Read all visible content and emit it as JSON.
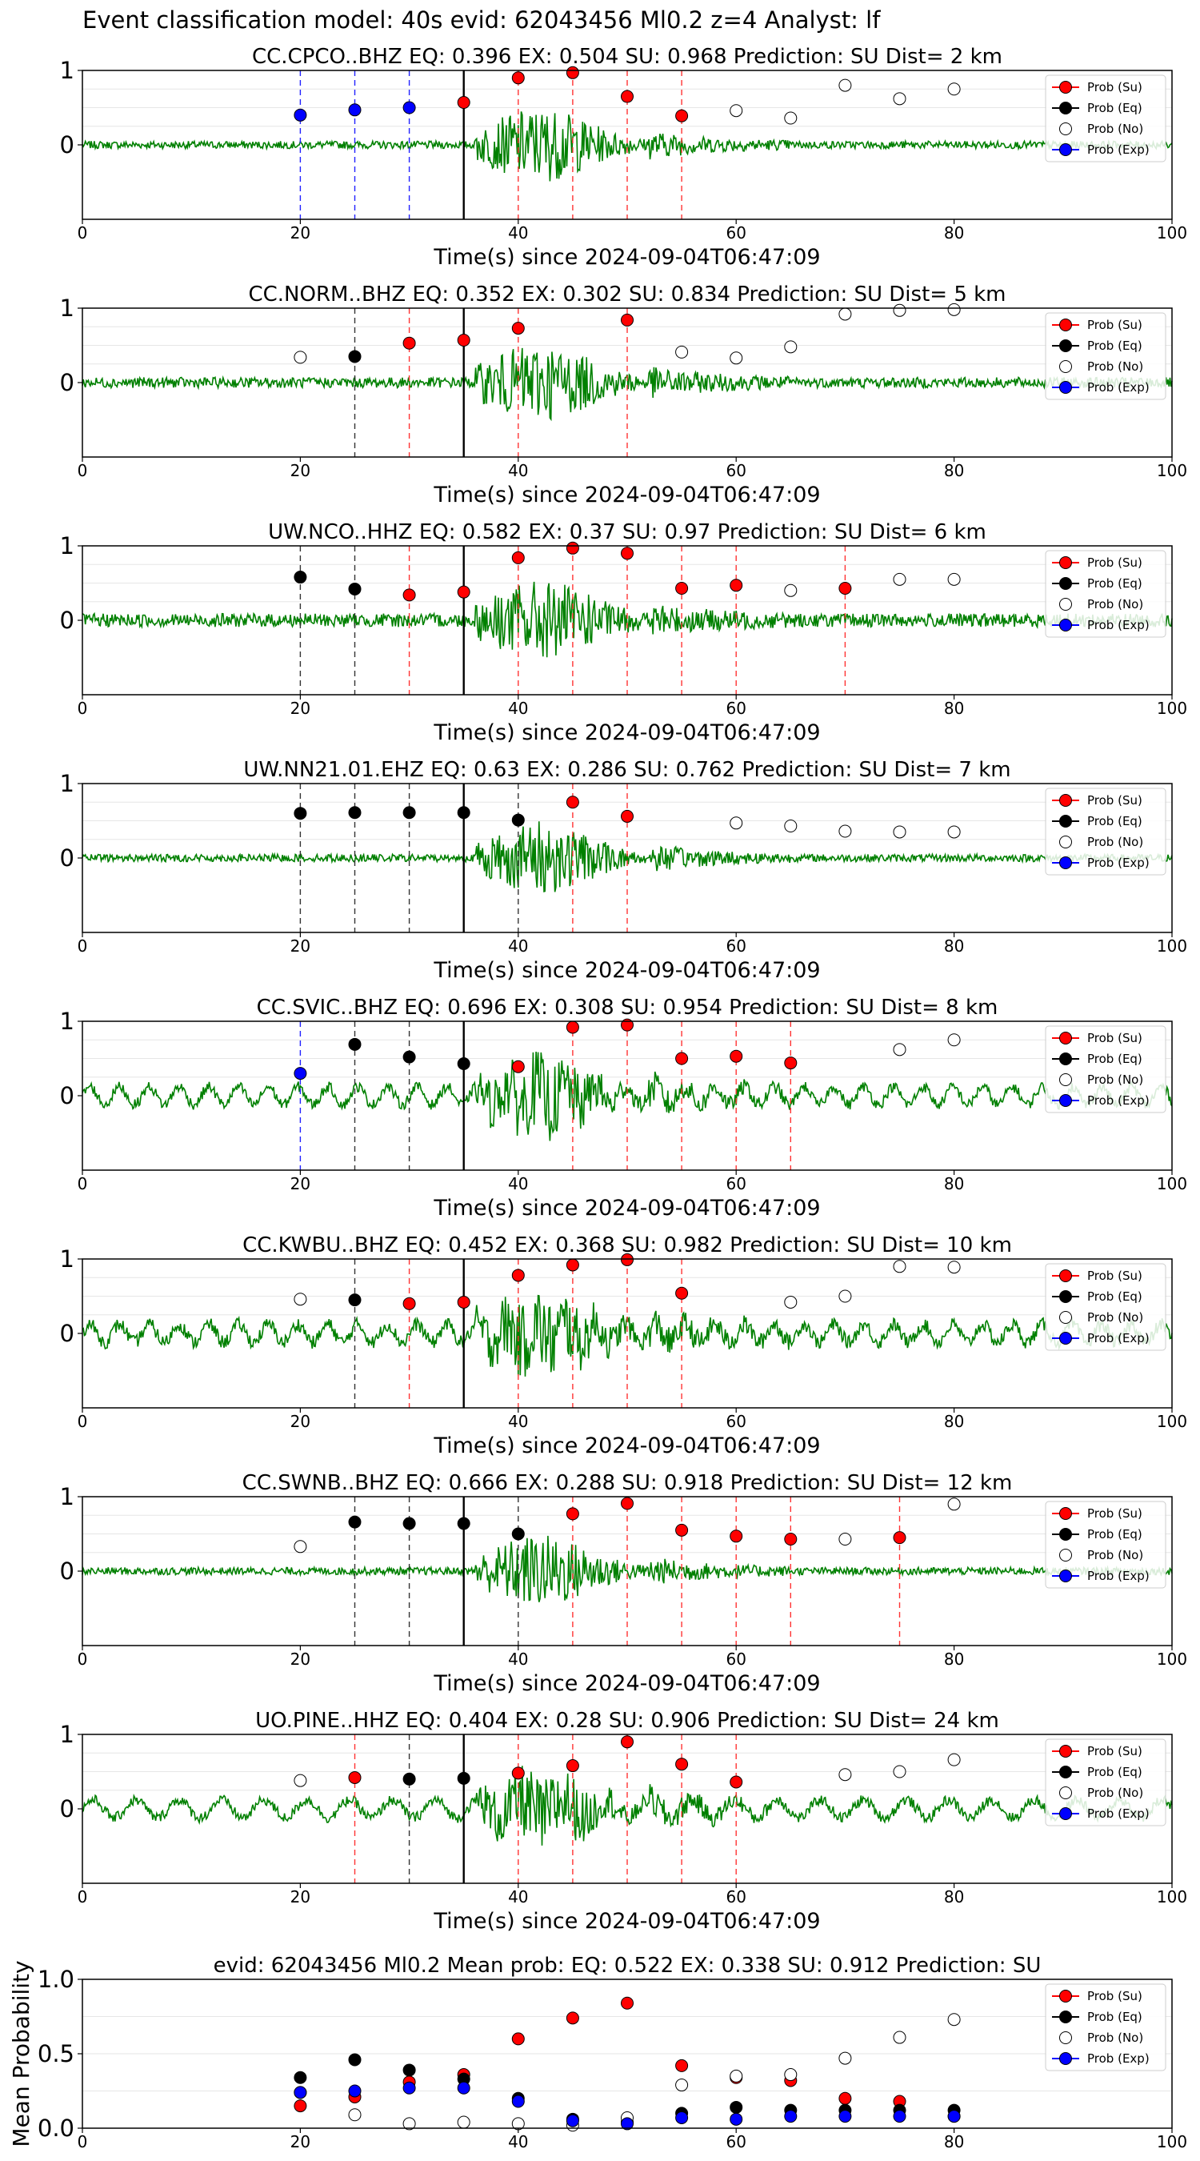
{
  "suptitle": "Event classification model: 40s evid: 62043456 Ml0.2 z=4 Analyst: lf",
  "colors": {
    "su": "#ff0000",
    "eq": "#000000",
    "no": "#ffffff",
    "exp": "#0000ff",
    "waveform": "#008000"
  },
  "legend_labels": [
    "Prob (Su)",
    "Prob (Eq)",
    "Prob (No)",
    "Prob (Exp)"
  ],
  "chart_data": [
    {
      "type": "scatter",
      "title": "CC.CPCO..BHZ   EQ: 0.396  EX: 0.504  SU: 0.968   Prediction: SU    Dist= 2 km",
      "xlabel": "Time(s) since 2024-09-04T06:47:09",
      "xlim": [
        0,
        100
      ],
      "ylim": [
        -1,
        1
      ],
      "xticks": [
        "0",
        "20",
        "40",
        "60",
        "80",
        "100"
      ],
      "yticks": [
        "0",
        "1"
      ],
      "legend_position": "top-right",
      "origin_time": 35,
      "vlines": [
        {
          "x": 20,
          "cls": "exp"
        },
        {
          "x": 25,
          "cls": "exp"
        },
        {
          "x": 30,
          "cls": "exp"
        },
        {
          "x": 40,
          "cls": "su"
        },
        {
          "x": 45,
          "cls": "su"
        },
        {
          "x": 50,
          "cls": "su"
        },
        {
          "x": 55,
          "cls": "su"
        }
      ],
      "points": [
        {
          "x": 20,
          "y": 0.4,
          "cls": "exp"
        },
        {
          "x": 25,
          "y": 0.47,
          "cls": "exp"
        },
        {
          "x": 30,
          "y": 0.5,
          "cls": "exp"
        },
        {
          "x": 35,
          "y": 0.57,
          "cls": "su"
        },
        {
          "x": 40,
          "y": 0.9,
          "cls": "su"
        },
        {
          "x": 45,
          "y": 0.97,
          "cls": "su"
        },
        {
          "x": 50,
          "y": 0.65,
          "cls": "su"
        },
        {
          "x": 55,
          "y": 0.39,
          "cls": "su"
        },
        {
          "x": 60,
          "y": 0.46,
          "cls": "no"
        },
        {
          "x": 65,
          "y": 0.36,
          "cls": "no"
        },
        {
          "x": 70,
          "y": 0.8,
          "cls": "no"
        },
        {
          "x": 75,
          "y": 0.62,
          "cls": "no"
        },
        {
          "x": 80,
          "y": 0.75,
          "cls": "no"
        }
      ]
    },
    {
      "type": "scatter",
      "title": "CC.NORM..BHZ   EQ: 0.352  EX: 0.302  SU: 0.834   Prediction: SU    Dist= 5 km",
      "xlabel": "Time(s) since 2024-09-04T06:47:09",
      "xlim": [
        0,
        100
      ],
      "ylim": [
        -1,
        1
      ],
      "xticks": [
        "0",
        "20",
        "40",
        "60",
        "80",
        "100"
      ],
      "yticks": [
        "0",
        "1"
      ],
      "legend_position": "top-right",
      "origin_time": 35,
      "vlines": [
        {
          "x": 25,
          "cls": "eq"
        },
        {
          "x": 30,
          "cls": "su"
        },
        {
          "x": 40,
          "cls": "su"
        },
        {
          "x": 50,
          "cls": "su"
        }
      ],
      "points": [
        {
          "x": 20,
          "y": 0.34,
          "cls": "no"
        },
        {
          "x": 25,
          "y": 0.35,
          "cls": "eq"
        },
        {
          "x": 30,
          "y": 0.53,
          "cls": "su"
        },
        {
          "x": 35,
          "y": 0.57,
          "cls": "su"
        },
        {
          "x": 40,
          "y": 0.73,
          "cls": "su"
        },
        {
          "x": 50,
          "y": 0.84,
          "cls": "su"
        },
        {
          "x": 55,
          "y": 0.41,
          "cls": "no"
        },
        {
          "x": 60,
          "y": 0.33,
          "cls": "no"
        },
        {
          "x": 65,
          "y": 0.48,
          "cls": "no"
        },
        {
          "x": 70,
          "y": 0.92,
          "cls": "no"
        },
        {
          "x": 75,
          "y": 0.97,
          "cls": "no"
        },
        {
          "x": 80,
          "y": 0.98,
          "cls": "no"
        }
      ]
    },
    {
      "type": "scatter",
      "title": "UW.NCO..HHZ   EQ: 0.582  EX: 0.37  SU: 0.97   Prediction: SU    Dist= 6 km",
      "xlabel": "Time(s) since 2024-09-04T06:47:09",
      "xlim": [
        0,
        100
      ],
      "ylim": [
        -1,
        1
      ],
      "xticks": [
        "0",
        "20",
        "40",
        "60",
        "80",
        "100"
      ],
      "yticks": [
        "0",
        "1"
      ],
      "legend_position": "top-right",
      "origin_time": 35,
      "vlines": [
        {
          "x": 20,
          "cls": "eq"
        },
        {
          "x": 25,
          "cls": "eq"
        },
        {
          "x": 30,
          "cls": "su"
        },
        {
          "x": 40,
          "cls": "su"
        },
        {
          "x": 45,
          "cls": "su"
        },
        {
          "x": 50,
          "cls": "su"
        },
        {
          "x": 55,
          "cls": "su"
        },
        {
          "x": 60,
          "cls": "su"
        },
        {
          "x": 70,
          "cls": "su"
        }
      ],
      "points": [
        {
          "x": 20,
          "y": 0.58,
          "cls": "eq"
        },
        {
          "x": 25,
          "y": 0.42,
          "cls": "eq"
        },
        {
          "x": 30,
          "y": 0.34,
          "cls": "su"
        },
        {
          "x": 35,
          "y": 0.38,
          "cls": "su"
        },
        {
          "x": 40,
          "y": 0.84,
          "cls": "su"
        },
        {
          "x": 45,
          "y": 0.97,
          "cls": "su"
        },
        {
          "x": 50,
          "y": 0.9,
          "cls": "su"
        },
        {
          "x": 55,
          "y": 0.43,
          "cls": "su"
        },
        {
          "x": 60,
          "y": 0.47,
          "cls": "su"
        },
        {
          "x": 65,
          "y": 0.4,
          "cls": "no"
        },
        {
          "x": 70,
          "y": 0.43,
          "cls": "su"
        },
        {
          "x": 75,
          "y": 0.55,
          "cls": "no"
        },
        {
          "x": 80,
          "y": 0.55,
          "cls": "no"
        }
      ]
    },
    {
      "type": "scatter",
      "title": "UW.NN21.01.EHZ   EQ: 0.63  EX: 0.286  SU: 0.762   Prediction: SU    Dist= 7 km",
      "xlabel": "Time(s) since 2024-09-04T06:47:09",
      "xlim": [
        0,
        100
      ],
      "ylim": [
        -1,
        1
      ],
      "xticks": [
        "0",
        "20",
        "40",
        "60",
        "80",
        "100"
      ],
      "yticks": [
        "0",
        "1"
      ],
      "legend_position": "top-right",
      "origin_time": 35,
      "vlines": [
        {
          "x": 20,
          "cls": "eq"
        },
        {
          "x": 25,
          "cls": "eq"
        },
        {
          "x": 30,
          "cls": "eq"
        },
        {
          "x": 40,
          "cls": "eq"
        },
        {
          "x": 45,
          "cls": "su"
        },
        {
          "x": 50,
          "cls": "su"
        }
      ],
      "points": [
        {
          "x": 20,
          "y": 0.6,
          "cls": "eq"
        },
        {
          "x": 25,
          "y": 0.61,
          "cls": "eq"
        },
        {
          "x": 30,
          "y": 0.61,
          "cls": "eq"
        },
        {
          "x": 35,
          "y": 0.61,
          "cls": "eq"
        },
        {
          "x": 40,
          "y": 0.51,
          "cls": "eq"
        },
        {
          "x": 45,
          "y": 0.75,
          "cls": "su"
        },
        {
          "x": 50,
          "y": 0.56,
          "cls": "su"
        },
        {
          "x": 60,
          "y": 0.47,
          "cls": "no"
        },
        {
          "x": 65,
          "y": 0.43,
          "cls": "no"
        },
        {
          "x": 70,
          "y": 0.36,
          "cls": "no"
        },
        {
          "x": 75,
          "y": 0.35,
          "cls": "no"
        },
        {
          "x": 80,
          "y": 0.35,
          "cls": "no"
        }
      ]
    },
    {
      "type": "scatter",
      "title": "CC.SVIC..BHZ   EQ: 0.696  EX: 0.308  SU: 0.954   Prediction: SU    Dist= 8 km",
      "xlabel": "Time(s) since 2024-09-04T06:47:09",
      "xlim": [
        0,
        100
      ],
      "ylim": [
        -1,
        1
      ],
      "xticks": [
        "0",
        "20",
        "40",
        "60",
        "80",
        "100"
      ],
      "yticks": [
        "0",
        "1"
      ],
      "legend_position": "top-right",
      "origin_time": 35,
      "vlines": [
        {
          "x": 20,
          "cls": "exp"
        },
        {
          "x": 25,
          "cls": "eq"
        },
        {
          "x": 30,
          "cls": "eq"
        },
        {
          "x": 45,
          "cls": "su"
        },
        {
          "x": 50,
          "cls": "su"
        },
        {
          "x": 55,
          "cls": "su"
        },
        {
          "x": 60,
          "cls": "su"
        },
        {
          "x": 65,
          "cls": "su"
        }
      ],
      "points": [
        {
          "x": 20,
          "y": 0.3,
          "cls": "exp"
        },
        {
          "x": 25,
          "y": 0.69,
          "cls": "eq"
        },
        {
          "x": 30,
          "y": 0.52,
          "cls": "eq"
        },
        {
          "x": 35,
          "y": 0.43,
          "cls": "eq"
        },
        {
          "x": 40,
          "y": 0.39,
          "cls": "su"
        },
        {
          "x": 45,
          "y": 0.92,
          "cls": "su"
        },
        {
          "x": 50,
          "y": 0.95,
          "cls": "su"
        },
        {
          "x": 55,
          "y": 0.5,
          "cls": "su"
        },
        {
          "x": 60,
          "y": 0.53,
          "cls": "su"
        },
        {
          "x": 65,
          "y": 0.44,
          "cls": "su"
        },
        {
          "x": 75,
          "y": 0.62,
          "cls": "no"
        },
        {
          "x": 80,
          "y": 0.75,
          "cls": "no"
        }
      ]
    },
    {
      "type": "scatter",
      "title": "CC.KWBU..BHZ   EQ: 0.452  EX: 0.368  SU: 0.982   Prediction: SU    Dist= 10 km",
      "xlabel": "Time(s) since 2024-09-04T06:47:09",
      "xlim": [
        0,
        100
      ],
      "ylim": [
        -1,
        1
      ],
      "xticks": [
        "0",
        "20",
        "40",
        "60",
        "80",
        "100"
      ],
      "yticks": [
        "0",
        "1"
      ],
      "legend_position": "top-right",
      "origin_time": 35,
      "vlines": [
        {
          "x": 25,
          "cls": "eq"
        },
        {
          "x": 30,
          "cls": "su"
        },
        {
          "x": 40,
          "cls": "su"
        },
        {
          "x": 45,
          "cls": "su"
        },
        {
          "x": 50,
          "cls": "su"
        },
        {
          "x": 55,
          "cls": "su"
        }
      ],
      "points": [
        {
          "x": 20,
          "y": 0.46,
          "cls": "no"
        },
        {
          "x": 25,
          "y": 0.45,
          "cls": "eq"
        },
        {
          "x": 30,
          "y": 0.4,
          "cls": "su"
        },
        {
          "x": 35,
          "y": 0.42,
          "cls": "su"
        },
        {
          "x": 40,
          "y": 0.78,
          "cls": "su"
        },
        {
          "x": 45,
          "y": 0.92,
          "cls": "su"
        },
        {
          "x": 50,
          "y": 0.99,
          "cls": "su"
        },
        {
          "x": 55,
          "y": 0.54,
          "cls": "su"
        },
        {
          "x": 65,
          "y": 0.42,
          "cls": "no"
        },
        {
          "x": 70,
          "y": 0.5,
          "cls": "no"
        },
        {
          "x": 75,
          "y": 0.9,
          "cls": "no"
        },
        {
          "x": 80,
          "y": 0.89,
          "cls": "no"
        }
      ]
    },
    {
      "type": "scatter",
      "title": "CC.SWNB..BHZ   EQ: 0.666  EX: 0.288  SU: 0.918   Prediction: SU    Dist= 12 km",
      "xlabel": "Time(s) since 2024-09-04T06:47:09",
      "xlim": [
        0,
        100
      ],
      "ylim": [
        -1,
        1
      ],
      "xticks": [
        "0",
        "20",
        "40",
        "60",
        "80",
        "100"
      ],
      "yticks": [
        "0",
        "1"
      ],
      "legend_position": "top-right",
      "origin_time": 35,
      "vlines": [
        {
          "x": 25,
          "cls": "eq"
        },
        {
          "x": 30,
          "cls": "eq"
        },
        {
          "x": 40,
          "cls": "eq"
        },
        {
          "x": 45,
          "cls": "su"
        },
        {
          "x": 50,
          "cls": "su"
        },
        {
          "x": 55,
          "cls": "su"
        },
        {
          "x": 60,
          "cls": "su"
        },
        {
          "x": 65,
          "cls": "su"
        },
        {
          "x": 75,
          "cls": "su"
        }
      ],
      "points": [
        {
          "x": 20,
          "y": 0.33,
          "cls": "no"
        },
        {
          "x": 25,
          "y": 0.66,
          "cls": "eq"
        },
        {
          "x": 30,
          "y": 0.64,
          "cls": "eq"
        },
        {
          "x": 35,
          "y": 0.64,
          "cls": "eq"
        },
        {
          "x": 40,
          "y": 0.5,
          "cls": "eq"
        },
        {
          "x": 45,
          "y": 0.77,
          "cls": "su"
        },
        {
          "x": 50,
          "y": 0.91,
          "cls": "su"
        },
        {
          "x": 55,
          "y": 0.55,
          "cls": "su"
        },
        {
          "x": 60,
          "y": 0.47,
          "cls": "su"
        },
        {
          "x": 65,
          "y": 0.43,
          "cls": "su"
        },
        {
          "x": 70,
          "y": 0.43,
          "cls": "no"
        },
        {
          "x": 75,
          "y": 0.45,
          "cls": "su"
        },
        {
          "x": 80,
          "y": 0.9,
          "cls": "no"
        }
      ]
    },
    {
      "type": "scatter",
      "title": "UO.PINE..HHZ   EQ: 0.404  EX: 0.28  SU: 0.906   Prediction: SU    Dist= 24 km",
      "xlabel": "Time(s) since 2024-09-04T06:47:09",
      "xlim": [
        0,
        100
      ],
      "ylim": [
        -1,
        1
      ],
      "xticks": [
        "0",
        "20",
        "40",
        "60",
        "80",
        "100"
      ],
      "yticks": [
        "0",
        "1"
      ],
      "legend_position": "top-right",
      "origin_time": 35,
      "vlines": [
        {
          "x": 25,
          "cls": "su"
        },
        {
          "x": 30,
          "cls": "eq"
        },
        {
          "x": 40,
          "cls": "su"
        },
        {
          "x": 45,
          "cls": "su"
        },
        {
          "x": 50,
          "cls": "su"
        },
        {
          "x": 55,
          "cls": "su"
        },
        {
          "x": 60,
          "cls": "su"
        }
      ],
      "points": [
        {
          "x": 20,
          "y": 0.38,
          "cls": "no"
        },
        {
          "x": 25,
          "y": 0.42,
          "cls": "su"
        },
        {
          "x": 30,
          "y": 0.4,
          "cls": "eq"
        },
        {
          "x": 35,
          "y": 0.41,
          "cls": "eq"
        },
        {
          "x": 40,
          "y": 0.48,
          "cls": "su"
        },
        {
          "x": 45,
          "y": 0.58,
          "cls": "su"
        },
        {
          "x": 50,
          "y": 0.9,
          "cls": "su"
        },
        {
          "x": 55,
          "y": 0.6,
          "cls": "su"
        },
        {
          "x": 60,
          "y": 0.36,
          "cls": "su"
        },
        {
          "x": 70,
          "y": 0.46,
          "cls": "no"
        },
        {
          "x": 75,
          "y": 0.5,
          "cls": "no"
        },
        {
          "x": 80,
          "y": 0.66,
          "cls": "no"
        }
      ]
    },
    {
      "type": "scatter",
      "title": "evid: 62043456  Ml0.2   Mean prob:    EQ: 0.522  EX: 0.338  SU: 0.912   Prediction: SU",
      "xlabel": "",
      "ylabel": "Mean Probability",
      "xlim": [
        0,
        100
      ],
      "ylim": [
        0,
        1
      ],
      "xticks": [
        "0",
        "20",
        "40",
        "60",
        "80",
        "100"
      ],
      "yticks": [
        "0.0",
        "0.5",
        "1.0"
      ],
      "legend_position": "top-right",
      "series": [
        {
          "name": "Prob (Su)",
          "cls": "su",
          "x": [
            20,
            25,
            30,
            35,
            40,
            45,
            50,
            55,
            60,
            65,
            70,
            75,
            80
          ],
          "values": [
            0.15,
            0.21,
            0.31,
            0.36,
            0.6,
            0.74,
            0.84,
            0.42,
            0.34,
            0.32,
            0.2,
            0.18,
            0.08
          ]
        },
        {
          "name": "Prob (Eq)",
          "cls": "eq",
          "x": [
            20,
            25,
            30,
            35,
            40,
            45,
            50,
            55,
            60,
            65,
            70,
            75,
            80
          ],
          "values": [
            0.34,
            0.46,
            0.39,
            0.33,
            0.2,
            0.06,
            0.04,
            0.1,
            0.14,
            0.12,
            0.12,
            0.12,
            0.12
          ]
        },
        {
          "name": "Prob (No)",
          "cls": "no",
          "x": [
            20,
            25,
            30,
            35,
            40,
            45,
            50,
            55,
            60,
            65,
            70,
            75,
            80
          ],
          "values": [
            0.24,
            0.09,
            0.03,
            0.04,
            0.03,
            0.02,
            0.07,
            0.29,
            0.35,
            0.36,
            0.47,
            0.61,
            0.73
          ]
        },
        {
          "name": "Prob (Exp)",
          "cls": "exp",
          "x": [
            20,
            25,
            30,
            35,
            40,
            45,
            50,
            55,
            60,
            65,
            70,
            75,
            80
          ],
          "values": [
            0.24,
            0.25,
            0.27,
            0.27,
            0.18,
            0.05,
            0.03,
            0.07,
            0.06,
            0.08,
            0.08,
            0.08,
            0.08
          ]
        }
      ]
    }
  ]
}
